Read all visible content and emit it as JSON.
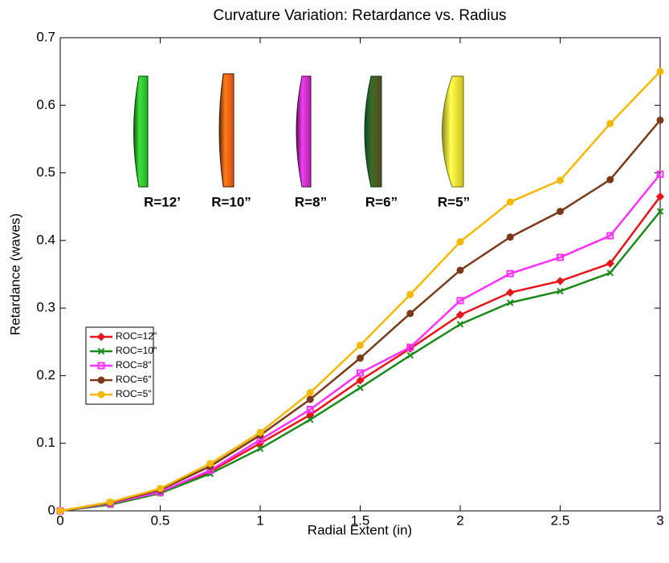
{
  "chart_data": {
    "type": "line",
    "title": "Curvature Variation: Retardance vs. Radius",
    "x_label": "Radial Extent (in)",
    "y_label": "Retardance (waves)",
    "x": [
      0,
      0.25,
      0.5,
      0.75,
      1,
      1.25,
      1.5,
      1.75,
      2,
      2.25,
      2.5,
      2.75,
      3
    ],
    "xlim": [
      0,
      3
    ],
    "xticks": [
      0,
      0.5,
      1,
      1.5,
      2,
      2.5,
      3
    ],
    "ylim": [
      0,
      0.7
    ],
    "yticks": [
      0,
      0.1,
      0.2,
      0.3,
      0.4,
      0.5,
      0.6,
      0.7
    ],
    "grid": false,
    "legend": "left",
    "series": [
      {
        "name": "ROC=12\"",
        "color": "#e8141a",
        "marker": "diamond",
        "values": [
          0,
          0.01,
          0.027,
          0.058,
          0.1,
          0.142,
          0.193,
          0.24,
          0.29,
          0.323,
          0.34,
          0.366,
          0.465
        ]
      },
      {
        "name": "ROC=10\"",
        "color": "#1a8a1a",
        "marker": "x",
        "values": [
          0,
          0.009,
          0.026,
          0.055,
          0.092,
          0.135,
          0.182,
          0.23,
          0.276,
          0.308,
          0.325,
          0.352,
          0.443
        ]
      },
      {
        "name": "ROC=8\"",
        "color": "#ff30ff",
        "marker": "square",
        "values": [
          0,
          0.011,
          0.028,
          0.06,
          0.105,
          0.15,
          0.204,
          0.242,
          0.311,
          0.351,
          0.375,
          0.407,
          0.498
        ]
      },
      {
        "name": "ROC=6\"",
        "color": "#7a3a1a",
        "marker": "circle",
        "values": [
          0,
          0.012,
          0.031,
          0.066,
          0.112,
          0.165,
          0.226,
          0.292,
          0.356,
          0.405,
          0.443,
          0.49,
          0.578
        ]
      },
      {
        "name": "ROC=5\"",
        "color": "#f5b800",
        "marker": "circle",
        "values": [
          0,
          0.013,
          0.033,
          0.07,
          0.116,
          0.175,
          0.245,
          0.32,
          0.398,
          0.457,
          0.489,
          0.573,
          0.65
        ]
      }
    ],
    "annotations": [
      "R=12’",
      "R=10”",
      "R=8”",
      "R=6”",
      "R=5”"
    ]
  }
}
